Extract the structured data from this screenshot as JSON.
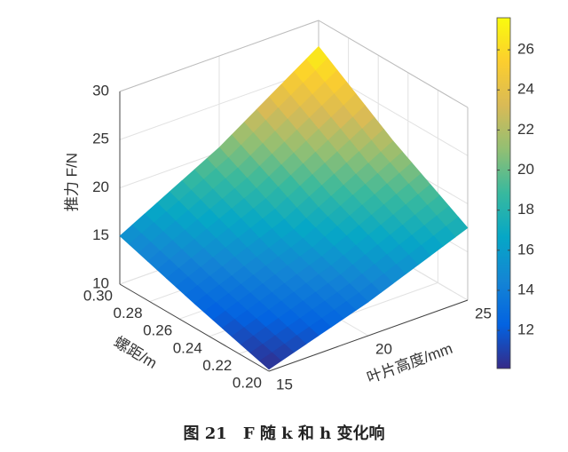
{
  "chart_data": {
    "type": "surface",
    "caption": "图 21　F 随 k 和 h 变化响",
    "xlabel": "叶片高度/mm",
    "ylabel": "螺距/m",
    "zlabel": "推力 F/N",
    "x": [
      15,
      20,
      25
    ],
    "y": [
      0.2,
      0.25,
      0.3
    ],
    "z": [
      [
        10.2,
        13.5,
        17.5
      ],
      [
        12.5,
        16.5,
        22
      ],
      [
        15,
        20.5,
        27.3
      ]
    ],
    "xlim": [
      15,
      25
    ],
    "xticks": [
      15,
      20,
      25
    ],
    "ylim": [
      0.2,
      0.3
    ],
    "yticks": [
      {
        "value": 0.2,
        "label": "0.20"
      },
      0.22,
      0.24,
      0.26,
      0.28,
      {
        "value": 0.3,
        "label": "0.30"
      }
    ],
    "zlim": [
      10,
      30
    ],
    "zticks": [
      10,
      15,
      20,
      25,
      30
    ],
    "colormap": "parula",
    "clim": [
      10.1,
      27.6
    ],
    "cticks": [
      12,
      14,
      16,
      18,
      20,
      22,
      24,
      26
    ],
    "grid": true
  }
}
